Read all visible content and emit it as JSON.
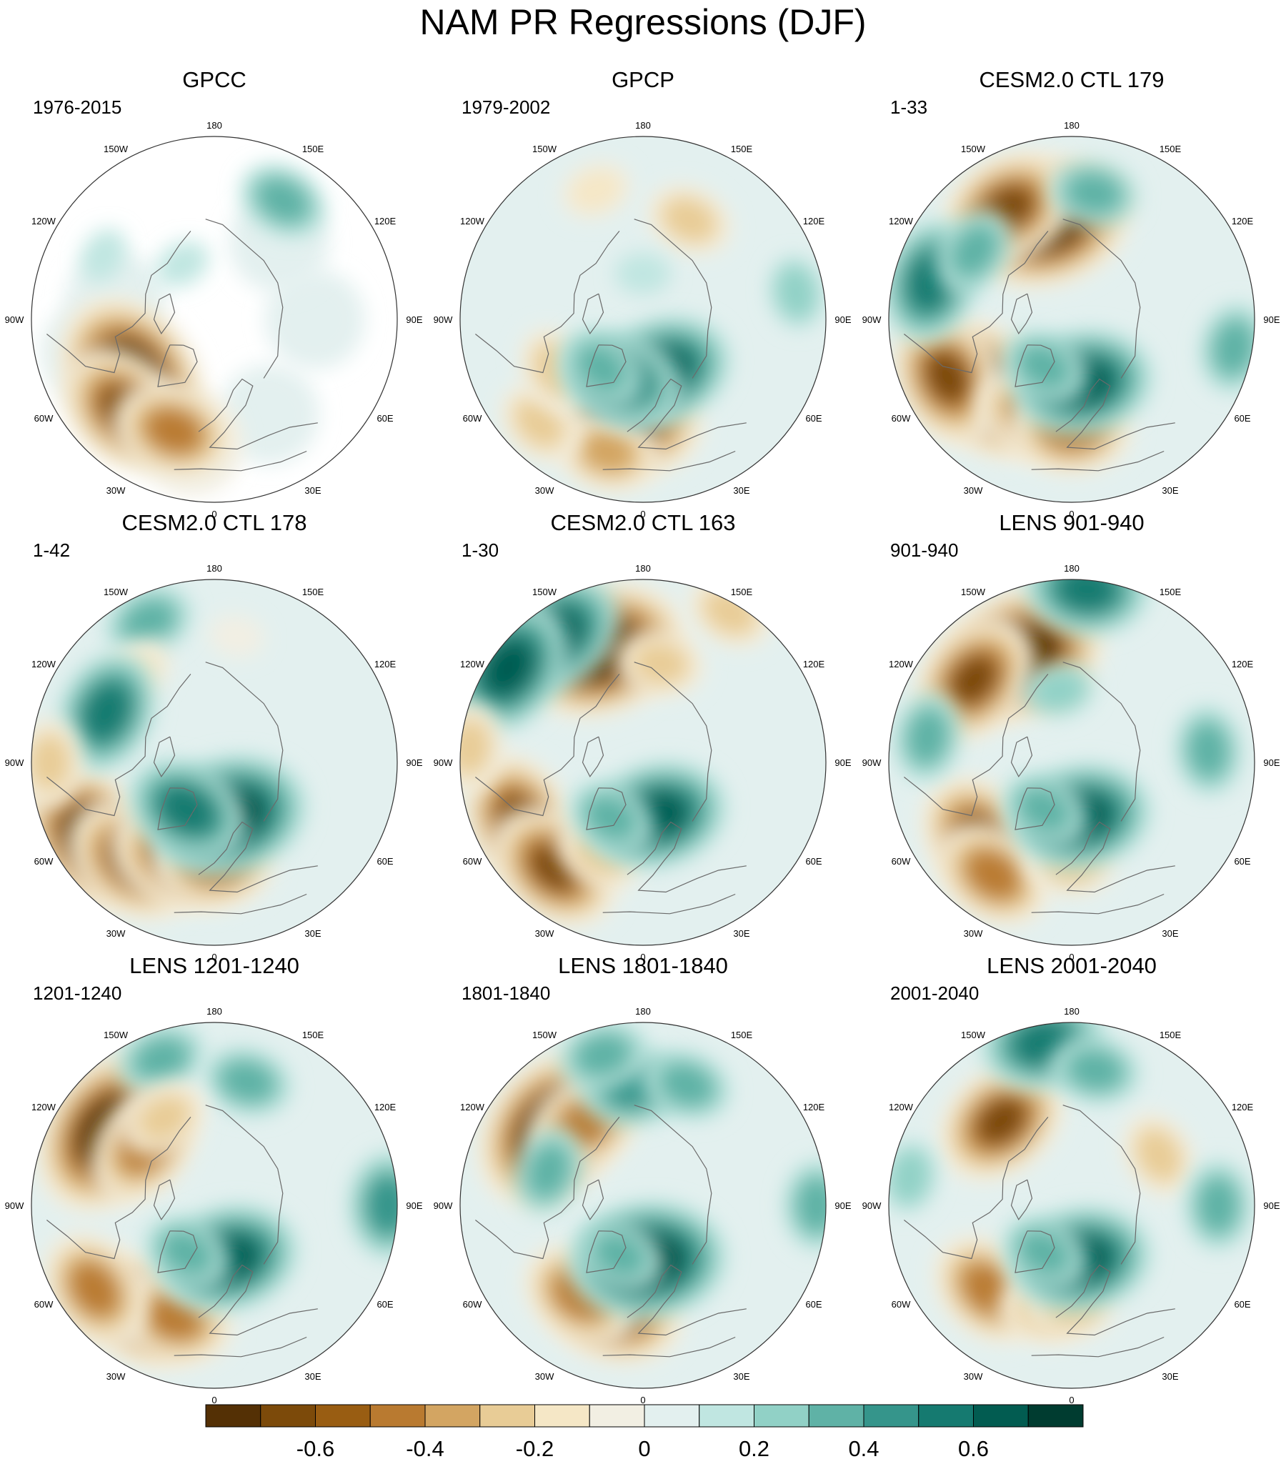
{
  "title": "NAM PR Regressions (DJF)",
  "palette": [
    "#543005",
    "#7c4a0a",
    "#995d12",
    "#b97a30",
    "#d3a562",
    "#e8cc96",
    "#f5e7c6",
    "#f2efe3",
    "#e3f0ef",
    "#c0e6e1",
    "#91d1c6",
    "#5fb2a6",
    "#35958b",
    "#157a70",
    "#025c51",
    "#003c30"
  ],
  "colorbar": {
    "tick_labels": [
      "-0.6",
      "-0.4",
      "-0.2",
      "0",
      "0.2",
      "0.4",
      "0.6"
    ]
  },
  "longitude_labels": [
    "180",
    "150E",
    "120E",
    "90E",
    "60E",
    "30E",
    "0",
    "30W",
    "60W",
    "90W",
    "120W",
    "150W"
  ],
  "panels": [
    {
      "title": "GPCC",
      "years": "1976-2015"
    },
    {
      "title": "GPCP",
      "years": "1979-2002"
    },
    {
      "title": "CESM2.0 CTL 179",
      "years": "1-33"
    },
    {
      "title": "CESM2.0 CTL 178",
      "years": "1-42"
    },
    {
      "title": "CESM2.0 CTL 163",
      "years": "1-30"
    },
    {
      "title": "LENS 901-940",
      "years": "901-940"
    },
    {
      "title": "LENS 1201-1240",
      "years": "1201-1240"
    },
    {
      "title": "LENS 1801-1840",
      "years": "1801-1840"
    },
    {
      "title": "LENS 2001-2040",
      "years": "2001-2040"
    }
  ],
  "anomaly_patterns": [
    {
      "kind": "masked-observations",
      "blobs": [
        [
          -55,
          0.55,
          -0.75
        ],
        [
          -45,
          0.7,
          -0.55
        ],
        [
          -20,
          0.65,
          -0.45
        ],
        [
          150,
          0.75,
          0.3
        ],
        [
          -120,
          0.7,
          0.15
        ],
        [
          -150,
          0.35,
          0.15
        ]
      ]
    },
    {
      "kind": "full",
      "blobs": [
        [
          -10,
          0.55,
          -0.65
        ],
        [
          -15,
          0.75,
          -0.4
        ],
        [
          -45,
          0.8,
          -0.3
        ],
        [
          -60,
          0.55,
          -0.3
        ],
        [
          20,
          0.3,
          0.6
        ],
        [
          -20,
          0.35,
          0.45
        ],
        [
          -40,
          0.35,
          0.3
        ],
        [
          155,
          0.6,
          -0.25
        ],
        [
          -160,
          0.75,
          -0.2
        ],
        [
          100,
          0.85,
          0.2
        ],
        [
          180,
          0.25,
          0.1
        ]
      ]
    },
    {
      "kind": "full",
      "blobs": [
        [
          -165,
          0.55,
          -0.75
        ],
        [
          -150,
          0.7,
          -0.55
        ],
        [
          -50,
          0.6,
          -0.7
        ],
        [
          -65,
          0.75,
          -0.55
        ],
        [
          -20,
          0.55,
          -0.5
        ],
        [
          0,
          0.6,
          -0.45
        ],
        [
          10,
          0.35,
          0.6
        ],
        [
          -30,
          0.3,
          0.35
        ],
        [
          -105,
          0.8,
          0.45
        ],
        [
          -125,
          0.65,
          0.3
        ],
        [
          80,
          0.9,
          0.35
        ],
        [
          170,
          0.7,
          0.3
        ]
      ]
    },
    {
      "kind": "full",
      "blobs": [
        [
          -60,
          0.8,
          -0.65
        ],
        [
          -40,
          0.7,
          -0.55
        ],
        [
          -20,
          0.55,
          -0.55
        ],
        [
          0,
          0.55,
          -0.5
        ],
        [
          15,
          0.3,
          0.65
        ],
        [
          -30,
          0.3,
          0.45
        ],
        [
          -155,
          0.85,
          0.35
        ],
        [
          -140,
          0.65,
          -0.2
        ],
        [
          -115,
          0.65,
          0.45
        ],
        [
          -90,
          0.9,
          -0.25
        ],
        [
          170,
          0.7,
          -0.15
        ]
      ]
    },
    {
      "kind": "full",
      "blobs": [
        [
          -160,
          0.65,
          -0.75
        ],
        [
          -145,
          0.85,
          0.55
        ],
        [
          -125,
          0.9,
          0.6
        ],
        [
          -65,
          0.75,
          -0.6
        ],
        [
          -40,
          0.75,
          -0.55
        ],
        [
          -25,
          0.55,
          -0.35
        ],
        [
          15,
          0.3,
          0.6
        ],
        [
          -30,
          0.35,
          0.35
        ],
        [
          150,
          0.95,
          -0.3
        ],
        [
          -95,
          0.95,
          -0.35
        ],
        [
          170,
          0.55,
          -0.3
        ]
      ]
    },
    {
      "kind": "full",
      "blobs": [
        [
          -155,
          0.65,
          -0.75
        ],
        [
          -130,
          0.7,
          -0.55
        ],
        [
          -50,
          0.65,
          -0.6
        ],
        [
          -35,
          0.75,
          -0.45
        ],
        [
          0,
          0.55,
          -0.35
        ],
        [
          10,
          0.3,
          0.6
        ],
        [
          -30,
          0.3,
          0.3
        ],
        [
          175,
          0.95,
          0.45
        ],
        [
          -170,
          0.4,
          0.2
        ],
        [
          -100,
          0.8,
          0.25
        ],
        [
          95,
          0.75,
          0.35
        ]
      ]
    },
    {
      "kind": "full",
      "blobs": [
        [
          -125,
          0.7,
          -0.8
        ],
        [
          -130,
          0.5,
          -0.5
        ],
        [
          -35,
          0.7,
          -0.6
        ],
        [
          -20,
          0.65,
          -0.5
        ],
        [
          -55,
          0.8,
          -0.45
        ],
        [
          15,
          0.3,
          0.6
        ],
        [
          -30,
          0.3,
          0.35
        ],
        [
          -160,
          0.85,
          0.35
        ],
        [
          165,
          0.7,
          0.35
        ],
        [
          -150,
          0.55,
          -0.3
        ],
        [
          90,
          0.95,
          0.4
        ]
      ]
    },
    {
      "kind": "full",
      "blobs": [
        [
          -130,
          0.65,
          -0.75
        ],
        [
          -145,
          0.55,
          -0.45
        ],
        [
          -15,
          0.6,
          -0.55
        ],
        [
          -35,
          0.6,
          -0.45
        ],
        [
          5,
          0.3,
          0.65
        ],
        [
          -25,
          0.3,
          0.35
        ],
        [
          -175,
          0.65,
          0.4
        ],
        [
          -165,
          0.85,
          0.3
        ],
        [
          160,
          0.7,
          0.35
        ],
        [
          90,
          0.95,
          0.3
        ],
        [
          -110,
          0.55,
          0.25
        ]
      ]
    },
    {
      "kind": "full",
      "blobs": [
        [
          -140,
          0.6,
          -0.6
        ],
        [
          -45,
          0.65,
          -0.45
        ],
        [
          -15,
          0.6,
          -0.35
        ],
        [
          0,
          0.55,
          -0.3
        ],
        [
          10,
          0.3,
          0.55
        ],
        [
          -30,
          0.3,
          0.3
        ],
        [
          -170,
          0.9,
          0.5
        ],
        [
          170,
          0.75,
          0.3
        ],
        [
          120,
          0.55,
          -0.25
        ],
        [
          -100,
          0.9,
          0.2
        ],
        [
          90,
          0.8,
          0.3
        ]
      ]
    }
  ]
}
